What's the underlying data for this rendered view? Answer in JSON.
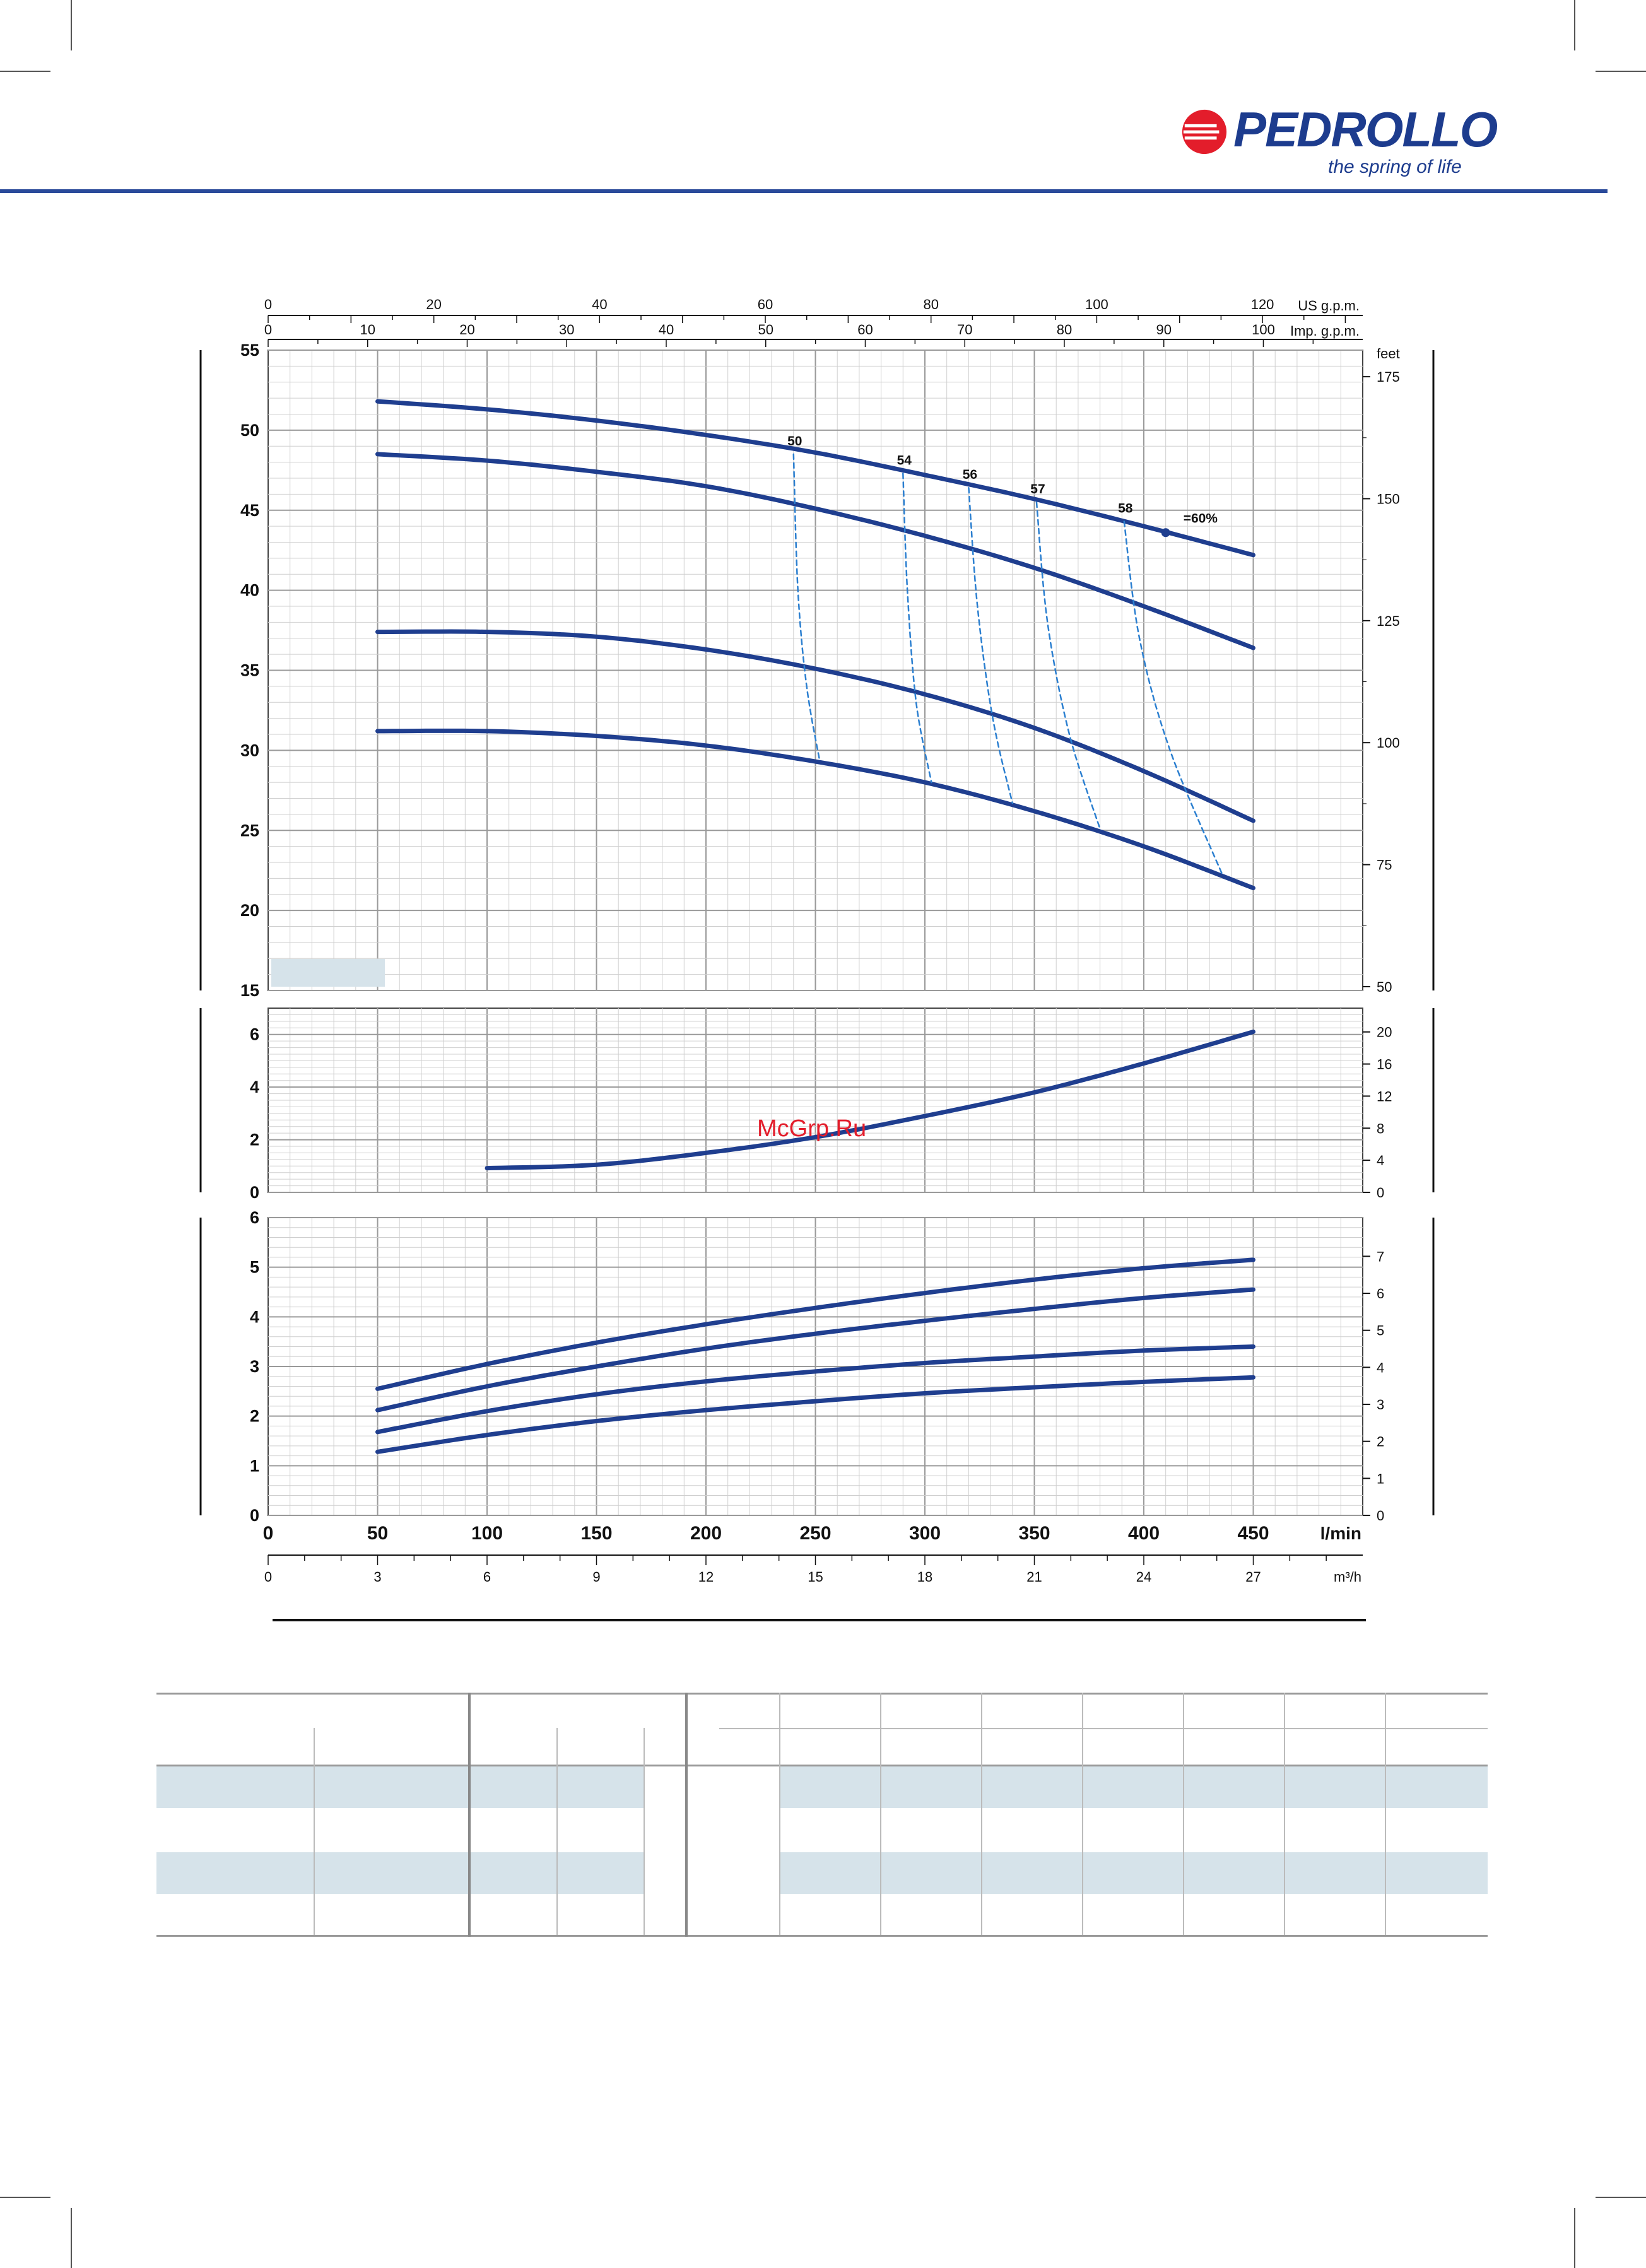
{
  "brand": {
    "name": "PEDROLLO",
    "tagline": "the spring of life",
    "registered": "®",
    "colors": {
      "primary": "#1d3c8e",
      "accent": "#e31d2b"
    }
  },
  "watermark": {
    "text": "McGrp.Ru",
    "color": "#e31d2b"
  },
  "chart_data": [
    {
      "type": "line",
      "name": "head",
      "ylabel_left": "",
      "ylim": [
        15,
        55
      ],
      "yticks": [
        15,
        20,
        25,
        30,
        35,
        40,
        45,
        50,
        55
      ],
      "right_axis": {
        "label": "feet",
        "ticks": [
          50,
          75,
          100,
          125,
          150,
          175
        ]
      },
      "top_axis_us": {
        "label": "US g.p.m.",
        "ticks": [
          0,
          20,
          40,
          60,
          80,
          100,
          120
        ]
      },
      "top_axis_imp": {
        "label": "Imp. g.p.m.",
        "ticks": [
          0,
          10,
          20,
          30,
          40,
          50,
          60,
          70,
          80,
          90,
          100
        ]
      },
      "xlim": [
        0,
        500
      ],
      "series": [
        {
          "x": [
            50,
            100,
            150,
            200,
            250,
            300,
            350,
            400,
            450
          ],
          "values": [
            51.8,
            51.3,
            50.6,
            49.7,
            48.6,
            47.2,
            45.7,
            44.0,
            42.2
          ]
        },
        {
          "x": [
            50,
            100,
            150,
            200,
            250,
            300,
            350,
            400,
            450
          ],
          "values": [
            48.5,
            48.1,
            47.4,
            46.5,
            45.1,
            43.4,
            41.4,
            39.0,
            36.4
          ]
        },
        {
          "x": [
            50,
            100,
            150,
            200,
            250,
            300,
            350,
            400,
            450
          ],
          "values": [
            37.4,
            37.4,
            37.1,
            36.3,
            35.1,
            33.5,
            31.4,
            28.7,
            25.6
          ]
        },
        {
          "x": [
            50,
            100,
            150,
            200,
            250,
            300,
            350,
            400,
            450
          ],
          "values": [
            31.2,
            31.2,
            30.9,
            30.3,
            29.3,
            28.0,
            26.2,
            24.0,
            21.4
          ]
        }
      ],
      "efficiency_labels": [
        "50",
        "54",
        "56",
        "57",
        "58"
      ],
      "efficiency_curves": [
        {
          "label": "50",
          "points": [
            [
              240,
              48.5
            ],
            [
              242,
              40
            ],
            [
              246,
              34
            ],
            [
              252,
              29.3
            ]
          ]
        },
        {
          "label": "54",
          "points": [
            [
              290,
              47.3
            ],
            [
              292,
              40
            ],
            [
              296,
              33
            ],
            [
              303,
              28
            ]
          ]
        },
        {
          "label": "56",
          "points": [
            [
              320,
              46.4
            ],
            [
              324,
              39
            ],
            [
              331,
              32
            ],
            [
              340,
              26.7
            ]
          ]
        },
        {
          "label": "57",
          "points": [
            [
              351,
              45.5
            ],
            [
              356,
              38
            ],
            [
              366,
              31
            ],
            [
              380,
              25.1
            ]
          ]
        },
        {
          "label": "58",
          "points": [
            [
              391,
              44.3
            ],
            [
              398,
              37
            ],
            [
              412,
              30
            ],
            [
              436,
              22.2
            ]
          ]
        }
      ],
      "efficiency_marker": {
        "label": "=60%",
        "x": 410,
        "y": 43.6
      }
    },
    {
      "type": "line",
      "name": "npsh",
      "ylim": [
        0,
        7
      ],
      "yticks": [
        0,
        2,
        4,
        6
      ],
      "right_axis": {
        "label": "",
        "ticks": [
          0,
          4,
          8,
          12,
          16,
          20
        ]
      },
      "xlim": [
        0,
        500
      ],
      "series": [
        {
          "x": [
            100,
            150,
            200,
            250,
            300,
            350,
            400,
            450
          ],
          "values": [
            0.92,
            1.05,
            1.5,
            2.1,
            2.9,
            3.8,
            4.9,
            6.1
          ]
        }
      ]
    },
    {
      "type": "line",
      "name": "power",
      "ylim": [
        0,
        6
      ],
      "yticks": [
        0,
        1,
        2,
        3,
        4,
        5,
        6
      ],
      "right_axis": {
        "label": "",
        "ticks": [
          0,
          1,
          2,
          3,
          4,
          5,
          6,
          7
        ]
      },
      "xlim": [
        0,
        500
      ],
      "xticks": [
        0,
        50,
        100,
        150,
        200,
        250,
        300,
        350,
        400,
        450
      ],
      "xlabel": "l/min",
      "bottom_axis_m3h": {
        "label": "m³/h",
        "ticks": [
          0,
          3,
          6,
          9,
          12,
          15,
          18,
          21,
          24,
          27
        ]
      },
      "series": [
        {
          "x": [
            50,
            100,
            150,
            200,
            250,
            300,
            350,
            400,
            450
          ],
          "values": [
            2.55,
            3.05,
            3.48,
            3.85,
            4.18,
            4.48,
            4.75,
            4.98,
            5.15
          ]
        },
        {
          "x": [
            50,
            100,
            150,
            200,
            250,
            300,
            350,
            400,
            450
          ],
          "values": [
            2.12,
            2.6,
            3.0,
            3.36,
            3.66,
            3.92,
            4.16,
            4.38,
            4.55
          ]
        },
        {
          "x": [
            50,
            100,
            150,
            200,
            250,
            300,
            350,
            400,
            450
          ],
          "values": [
            1.68,
            2.1,
            2.44,
            2.7,
            2.9,
            3.07,
            3.2,
            3.32,
            3.4
          ]
        },
        {
          "x": [
            50,
            100,
            150,
            200,
            250,
            300,
            350,
            400,
            450
          ],
          "values": [
            1.28,
            1.62,
            1.9,
            2.12,
            2.3,
            2.46,
            2.58,
            2.69,
            2.78
          ]
        }
      ]
    }
  ],
  "colors": {
    "curve": "#1f3e8f",
    "grid_minor": "#cfcfcf",
    "grid_major": "#9a9a9a",
    "band": "#d6e3ea",
    "dashed": "#2b7fd0"
  }
}
